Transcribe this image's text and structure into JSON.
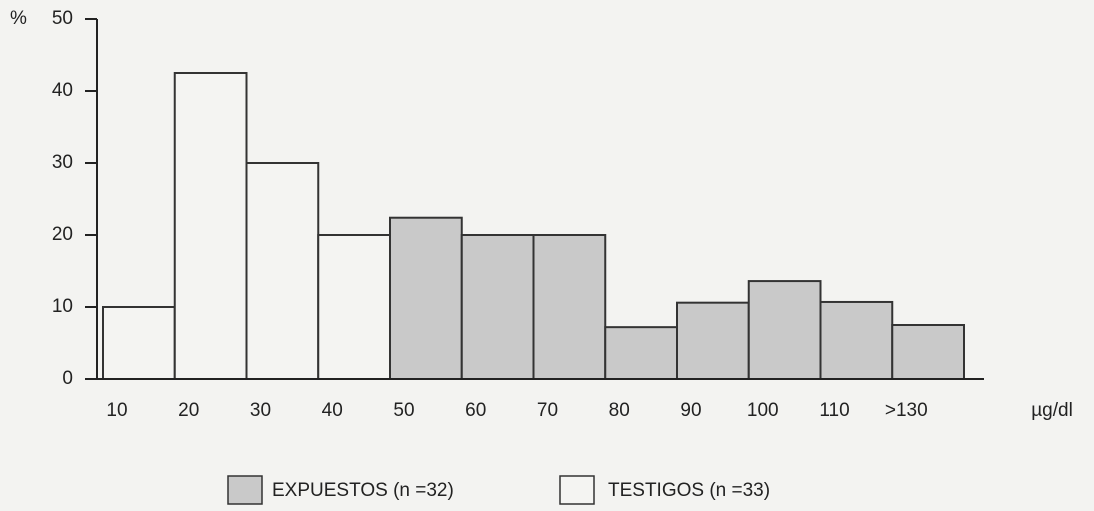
{
  "chart_data": {
    "type": "bar",
    "y_label": "%",
    "x_label": "µg/dl",
    "categories": [
      "10",
      "20",
      "30",
      "40",
      "50",
      "60",
      "70",
      "80",
      "90",
      "100",
      "110",
      ">130"
    ],
    "series": [
      {
        "name": "TESTIGOS (n =33)",
        "color": "#f4f4f2",
        "values": [
          10,
          42.5,
          30,
          20,
          null,
          null,
          null,
          null,
          null,
          null,
          null,
          null
        ]
      },
      {
        "name": "EXPUESTOS (n =32)",
        "color": "#c9c9c9",
        "values": [
          null,
          null,
          null,
          null,
          22.4,
          20,
          20,
          7.2,
          10.6,
          13.6,
          10.7,
          7.5
        ]
      }
    ],
    "ylim": [
      0,
      50
    ],
    "yticks": [
      0,
      10,
      20,
      30,
      40,
      50
    ]
  }
}
